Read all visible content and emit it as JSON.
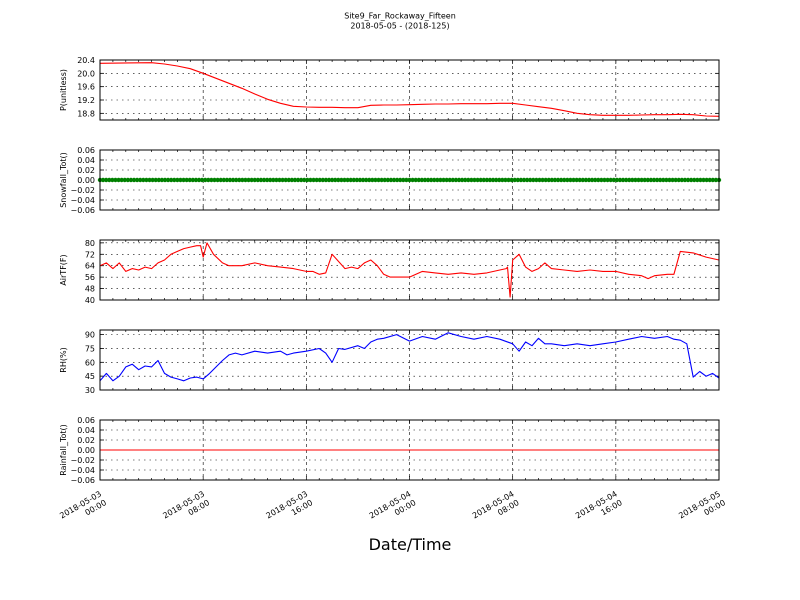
{
  "title_line1": "Site9_Far_Rockaway_Fifteen",
  "title_line2": "2018-05-05 - (2018-125)",
  "xlabel": "Date/Time",
  "x_ticks": [
    {
      "hours": 0,
      "line1": "2018-05-03",
      "line2": "00:00"
    },
    {
      "hours": 8,
      "line1": "2018-05-03",
      "line2": "08:00"
    },
    {
      "hours": 16,
      "line1": "2018-05-03",
      "line2": "16:00"
    },
    {
      "hours": 24,
      "line1": "2018-05-04",
      "line2": "00:00"
    },
    {
      "hours": 32,
      "line1": "2018-05-04",
      "line2": "08:00"
    },
    {
      "hours": 40,
      "line1": "2018-05-04",
      "line2": "16:00"
    },
    {
      "hours": 48,
      "line1": "2018-05-05",
      "line2": "00:00"
    }
  ],
  "chart_data": [
    {
      "type": "line",
      "ylabel": "P(unitless)",
      "ylim": [
        18.6,
        20.4
      ],
      "yticks": [
        "18.8",
        "19.2",
        "19.6",
        "20.0",
        "20.4"
      ],
      "grid": true,
      "series": [
        {
          "color": "#ff0000",
          "x": [
            0,
            4,
            5,
            6,
            7,
            8,
            9,
            10,
            11,
            12,
            13,
            14,
            15,
            16,
            17,
            18,
            19,
            20,
            21,
            22,
            23,
            24,
            25,
            26,
            27,
            28,
            29,
            30,
            31,
            32,
            33,
            34,
            35,
            36,
            37,
            38,
            39,
            40,
            41,
            42,
            43,
            44,
            45,
            46,
            47,
            48
          ],
          "y": [
            20.3,
            20.32,
            20.28,
            20.22,
            20.14,
            20.0,
            19.85,
            19.7,
            19.55,
            19.38,
            19.22,
            19.1,
            19.01,
            18.99,
            18.98,
            18.98,
            18.97,
            18.97,
            19.04,
            19.05,
            19.05,
            19.06,
            19.07,
            19.08,
            19.08,
            19.09,
            19.09,
            19.09,
            19.1,
            19.1,
            19.05,
            19.0,
            18.95,
            18.88,
            18.8,
            18.76,
            18.74,
            18.74,
            18.74,
            18.75,
            18.76,
            18.76,
            18.77,
            18.76,
            18.72,
            18.71
          ]
        }
      ]
    },
    {
      "type": "scatter",
      "ylabel": "Snowfall_Tot()",
      "ylim": [
        -0.06,
        0.06
      ],
      "yticks": [
        "−0.06",
        "−0.04",
        "−0.02",
        "0.00",
        "0.02",
        "0.04",
        "0.06"
      ],
      "grid": true,
      "series": [
        {
          "color": "#008000",
          "x_start": 0,
          "x_end": 48,
          "value": 0.0
        }
      ]
    },
    {
      "type": "line",
      "ylabel": "AirTF(F)",
      "ylim": [
        40,
        82
      ],
      "yticks": [
        "40",
        "48",
        "56",
        "64",
        "72",
        "80"
      ],
      "grid": true,
      "series": [
        {
          "color": "#ff0000",
          "x": [
            0,
            0.5,
            1,
            1.5,
            2,
            2.5,
            3,
            3.5,
            4,
            4.5,
            5,
            5.5,
            6,
            6.5,
            7,
            7.5,
            7.8,
            8,
            8.3,
            8.8,
            9.5,
            10,
            11,
            12,
            13,
            14,
            15,
            16,
            16.5,
            17,
            17.5,
            18,
            19,
            19.5,
            20,
            20.5,
            21,
            21.5,
            22,
            22.5,
            23,
            24,
            25,
            26,
            27,
            28,
            29,
            30,
            31,
            31.5,
            31.6,
            31.8,
            32,
            32.5,
            33,
            33.5,
            34,
            34.5,
            35,
            36,
            37,
            38,
            39,
            40,
            41,
            42,
            42.5,
            43,
            44,
            44.5,
            45,
            46,
            47,
            48
          ],
          "y": [
            64,
            66,
            62,
            66,
            60,
            62,
            61,
            63,
            62,
            66,
            68,
            72,
            74,
            76,
            77,
            78,
            78,
            70,
            80,
            72,
            66,
            64,
            64,
            66,
            64,
            63,
            62,
            60,
            60,
            58,
            59,
            72,
            62,
            63,
            62,
            66,
            68,
            64,
            58,
            56,
            56,
            56,
            60,
            59,
            58,
            59,
            58,
            59,
            61,
            62,
            63,
            42,
            68,
            72,
            63,
            60,
            62,
            66,
            62,
            61,
            60,
            61,
            60,
            60,
            58,
            57,
            55,
            57,
            58,
            58,
            74,
            73,
            70,
            68
          ]
        }
      ]
    },
    {
      "type": "line",
      "ylabel": "RH(%)",
      "ylim": [
        30,
        95
      ],
      "yticks": [
        "30",
        "45",
        "60",
        "75",
        "90"
      ],
      "grid": true,
      "series": [
        {
          "color": "#0000ff",
          "x": [
            0,
            0.5,
            1,
            1.5,
            2,
            2.5,
            3,
            3.5,
            4,
            4.5,
            5,
            5.5,
            6,
            6.5,
            7,
            7.5,
            8,
            8.5,
            9,
            9.5,
            10,
            10.5,
            11,
            12,
            13,
            14,
            14.5,
            15,
            16,
            17,
            17.5,
            18,
            18.5,
            19,
            20,
            20.5,
            21,
            21.5,
            22,
            23,
            24,
            25,
            26,
            27,
            28,
            29,
            30,
            31,
            32,
            32.5,
            33,
            33.5,
            34,
            34.5,
            35,
            36,
            37,
            38,
            39,
            40,
            41,
            42,
            43,
            44,
            44.5,
            45,
            45.5,
            46,
            46.5,
            47,
            47.5,
            48
          ],
          "y": [
            40,
            48,
            40,
            45,
            55,
            58,
            52,
            56,
            55,
            62,
            48,
            44,
            42,
            40,
            43,
            44,
            42,
            48,
            55,
            62,
            68,
            70,
            68,
            72,
            70,
            72,
            68,
            70,
            72,
            75,
            70,
            60,
            75,
            74,
            78,
            75,
            82,
            85,
            86,
            90,
            83,
            88,
            85,
            92,
            88,
            85,
            88,
            85,
            80,
            72,
            82,
            78,
            86,
            80,
            80,
            78,
            80,
            78,
            80,
            82,
            85,
            88,
            86,
            88,
            85,
            84,
            80,
            44,
            50,
            45,
            48,
            43
          ]
        }
      ]
    },
    {
      "type": "line",
      "ylabel": "Rainfall_Tot()",
      "ylim": [
        -0.06,
        0.06
      ],
      "yticks": [
        "−0.06",
        "−0.04",
        "−0.02",
        "0.00",
        "0.02",
        "0.04",
        "0.06"
      ],
      "grid": true,
      "series": [
        {
          "color": "#ff0000",
          "x": [
            0,
            48
          ],
          "y": [
            0.0,
            0.0
          ]
        }
      ]
    }
  ]
}
